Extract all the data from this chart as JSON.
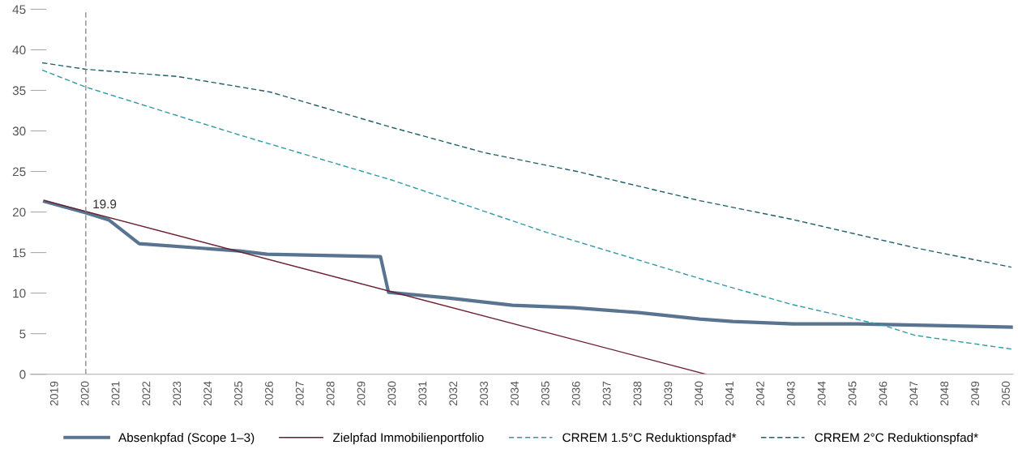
{
  "chart_data": {
    "type": "line",
    "series": [
      {
        "name": "Absenkpfad (Scope 1–3)",
        "color": "#587490",
        "x": [
          2018.66,
          2020,
          2020.76,
          2021.74,
          2025,
          2025.9,
          2029.6,
          2029.86,
          2031.8,
          2033.9,
          2035.9,
          2038.0,
          2040,
          2041.07,
          2043.05,
          2045.15,
          2050.15
        ],
        "values": [
          21.3,
          19.9,
          19.0,
          16.1,
          15.2,
          14.8,
          14.5,
          10.1,
          9.4,
          8.5,
          8.2,
          7.6,
          6.8,
          6.5,
          6.2,
          6.2,
          5.8
        ]
      },
      {
        "name": "Zielpfad Immobilienportfolio",
        "color": "#6b1e2e",
        "x": [
          2018.66,
          2040.2
        ],
        "values": [
          21.4,
          0
        ]
      },
      {
        "name": "CRREM 1.5°C Reduktionspfad*",
        "color": "#2f9aa6",
        "line_style": "dashed",
        "x": [
          2018.58,
          2020,
          2025,
          2030,
          2035,
          2040,
          2043,
          2046,
          2047,
          2050.15
        ],
        "values": [
          37.5,
          35.4,
          29.5,
          23.9,
          17.5,
          11.8,
          8.6,
          6.0,
          4.8,
          3.1
        ]
      },
      {
        "name": "CRREM 2°C Reduktionspfad*",
        "color": "#1f5f6a",
        "line_style": "dashed",
        "x": [
          2018.58,
          2020,
          2023,
          2026,
          2030,
          2033,
          2036,
          2040,
          2043,
          2047,
          2050.15
        ],
        "values": [
          38.4,
          37.6,
          36.7,
          34.8,
          30.4,
          27.3,
          25.0,
          21.4,
          19.1,
          15.6,
          13.2
        ]
      }
    ],
    "xlim": [
      2018.2,
      2050.2
    ],
    "xticks": [
      2019,
      2020,
      2021,
      2022,
      2023,
      2024,
      2025,
      2026,
      2027,
      2028,
      2029,
      2030,
      2031,
      2032,
      2033,
      2034,
      2035,
      2036,
      2037,
      2038,
      2039,
      2040,
      2041,
      2042,
      2043,
      2044,
      2045,
      2046,
      2047,
      2048,
      2049,
      2050
    ],
    "ylim": [
      0,
      45
    ],
    "yticks": [
      0,
      5,
      10,
      15,
      20,
      25,
      30,
      35,
      40,
      45
    ],
    "ref_lines": [
      {
        "axis": "x",
        "value": 2020,
        "color": "#8c8c8c",
        "line_style": "dashed"
      }
    ],
    "annotations": [
      {
        "text": "19.9",
        "x": 2020,
        "y": 19.9
      }
    ],
    "grid": false,
    "legend": "bottom",
    "line_style": "solid",
    "marker": "none"
  }
}
